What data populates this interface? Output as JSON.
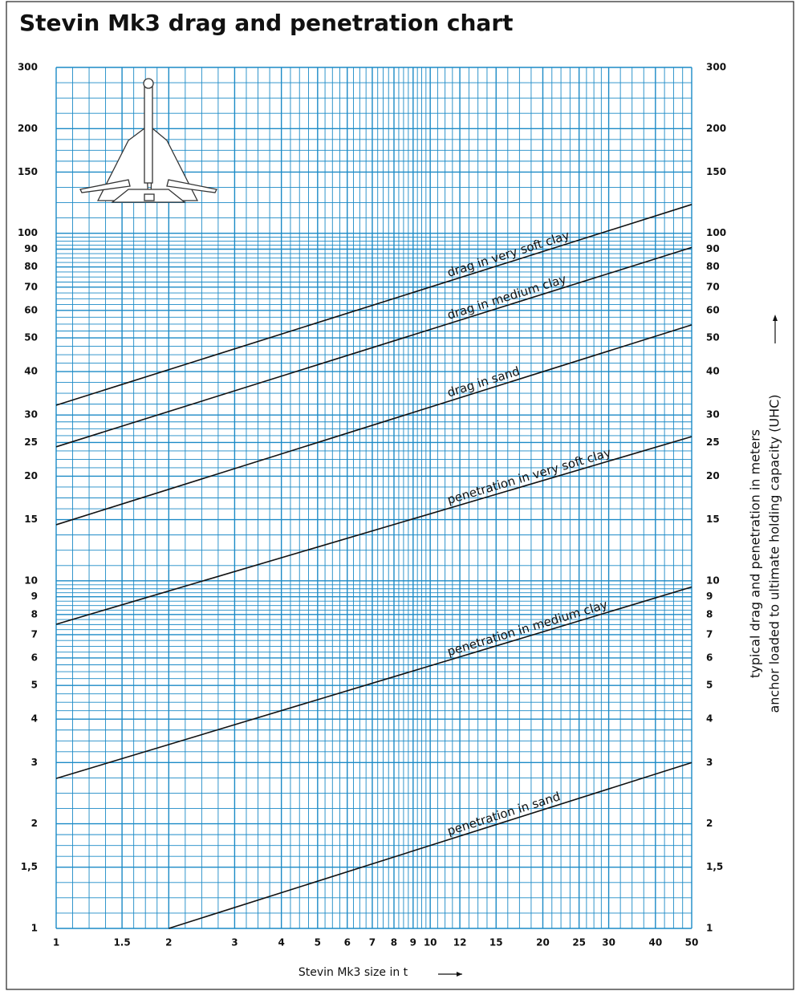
{
  "chart_data": {
    "type": "line",
    "title": "Stevin Mk3 drag and penetration chart",
    "xlabel": "Stevin Mk3 size in t",
    "ylabel": [
      "typical drag and penetration in meters",
      "anchor loaded to ultimate holding capacity (UHC)"
    ],
    "xscale": "log",
    "yscale": "log",
    "grid": true,
    "grid_color": "#1b8ac6",
    "xlim": [
      1,
      50
    ],
    "ylim": [
      1,
      300
    ],
    "xticks": [
      1,
      1.5,
      2,
      3,
      4,
      5,
      6,
      7,
      8,
      9,
      10,
      12,
      15,
      20,
      25,
      30,
      40,
      50
    ],
    "yticks": [
      1,
      {
        "value": 1.5,
        "label": "1,5"
      },
      2,
      3,
      4,
      5,
      6,
      7,
      8,
      9,
      10,
      15,
      20,
      25,
      30,
      40,
      50,
      60,
      70,
      80,
      90,
      100,
      150,
      200,
      300
    ],
    "series": [
      {
        "name": "drag in very soft clay",
        "color": "#111111",
        "x": [
          1,
          50
        ],
        "values": [
          32,
          121
        ]
      },
      {
        "name": "drag in medium clay",
        "color": "#111111",
        "x": [
          1,
          50
        ],
        "values": [
          24.3,
          91
        ]
      },
      {
        "name": "drag in sand",
        "color": "#111111",
        "x": [
          1,
          50
        ],
        "values": [
          14.5,
          54.5
        ]
      },
      {
        "name": "penetration in very soft clay",
        "color": "#111111",
        "x": [
          1,
          50
        ],
        "values": [
          7.5,
          26
        ]
      },
      {
        "name": "penetration in medium clay",
        "color": "#111111",
        "x": [
          1,
          50
        ],
        "values": [
          2.7,
          9.6
        ]
      },
      {
        "name": "penetration in sand",
        "color": "#111111",
        "x": [
          2,
          50
        ],
        "values": [
          1,
          3
        ]
      }
    ]
  }
}
